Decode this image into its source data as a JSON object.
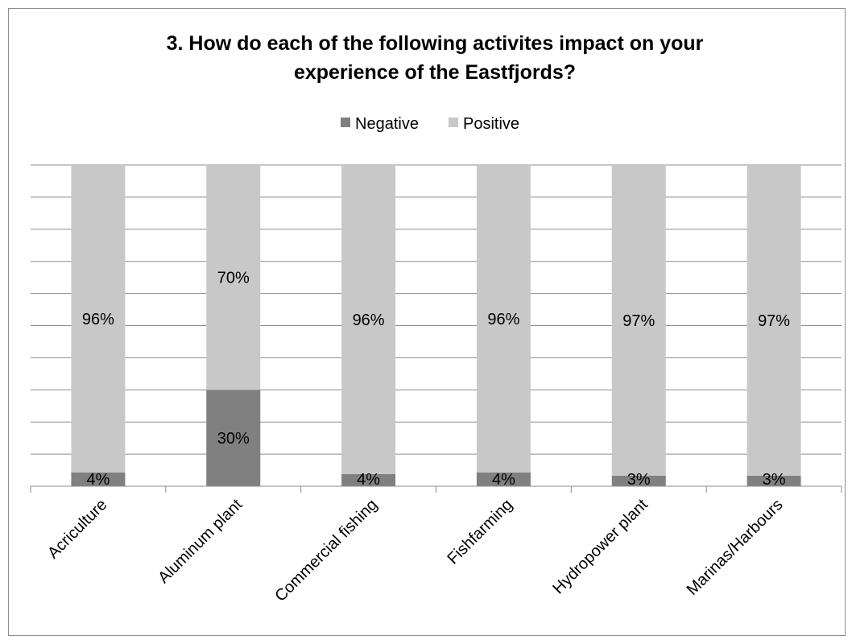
{
  "chart_data": {
    "type": "bar",
    "stacked": true,
    "title_line1": "3. How do each of the following activites impact on your",
    "title_line2": "experience of the Eastfjords?",
    "categories": [
      "Acriculture",
      "Aluminum plant",
      "Commercial fishing",
      "Fishfarming",
      "Hydropower plant",
      "Marinas/Harbours"
    ],
    "series": [
      {
        "name": "Negative",
        "color": "#808080",
        "values": [
          4.3,
          30,
          3.8,
          4.3,
          3.3,
          3.3
        ],
        "labels": [
          "4%",
          "30%",
          "4%",
          "4%",
          "3%",
          "3%"
        ]
      },
      {
        "name": "Positive",
        "color": "#c8c8c8",
        "values": [
          95.7,
          70,
          96.2,
          95.7,
          96.7,
          96.7
        ],
        "labels": [
          "96%",
          "70%",
          "96%",
          "96%",
          "97%",
          "97%"
        ]
      }
    ],
    "ylim": [
      0,
      100
    ],
    "gridlines": true,
    "legend_position": "top"
  }
}
